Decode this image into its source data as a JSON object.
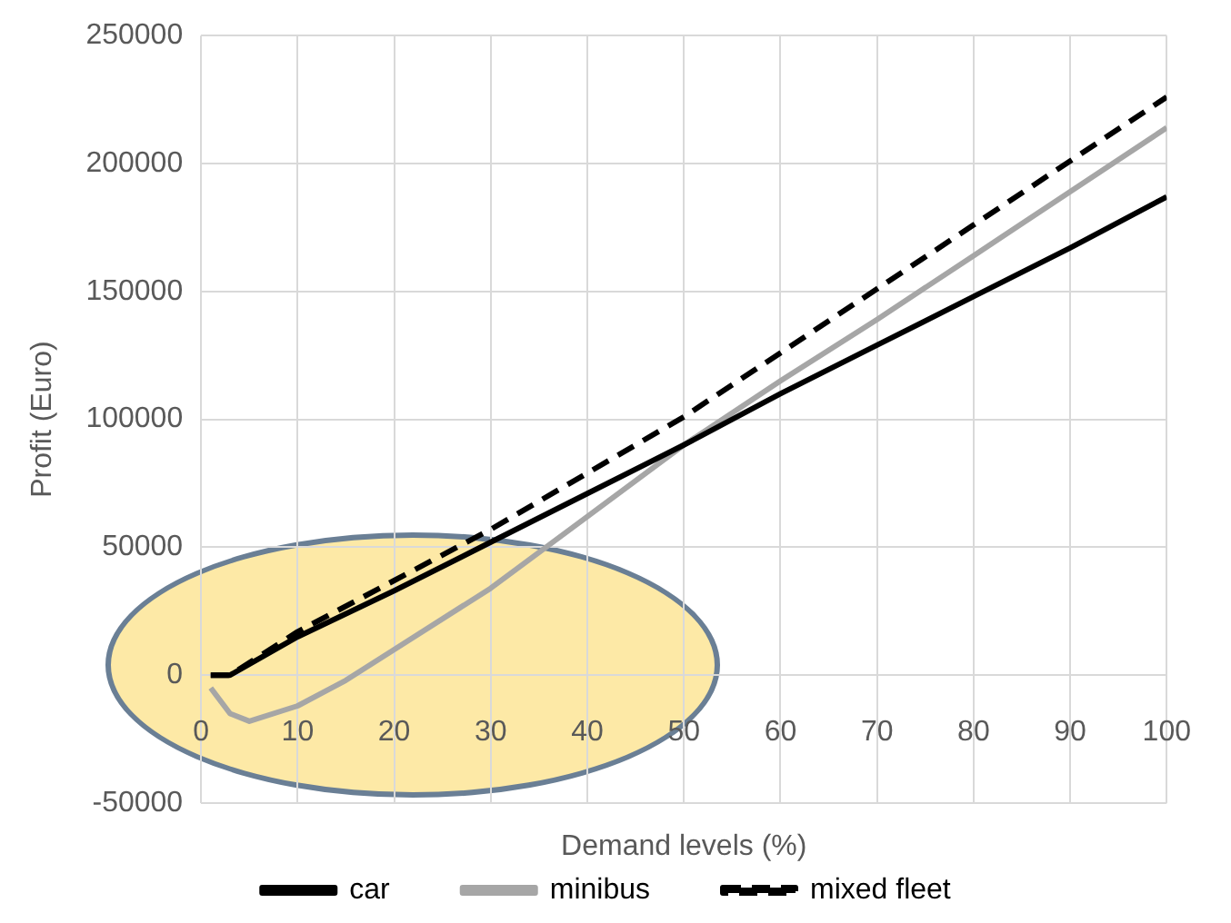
{
  "chart_data": {
    "type": "line",
    "xlabel": "Demand levels (%)",
    "ylabel": "Profit (Euro)",
    "xlim": [
      0,
      100
    ],
    "xticks": [
      0,
      10,
      20,
      30,
      40,
      50,
      60,
      70,
      80,
      90,
      100
    ],
    "ylim": [
      -50000,
      250000
    ],
    "yticks": [
      -50000,
      0,
      50000,
      100000,
      150000,
      200000,
      250000
    ],
    "grid": true,
    "legend": "bottom",
    "marker": "none",
    "series": [
      {
        "name": "car",
        "color": "#000000",
        "line_style": "solid",
        "x": [
          1,
          3,
          10,
          20,
          30,
          40,
          50,
          60,
          70,
          80,
          90,
          100
        ],
        "values": [
          0,
          0,
          15000,
          33000,
          52000,
          71000,
          90000,
          110000,
          129000,
          148000,
          167000,
          187000
        ]
      },
      {
        "name": "minibus",
        "color": "#a6a6a6",
        "line_style": "solid",
        "x": [
          1,
          3,
          5,
          10,
          15,
          20,
          30,
          40,
          50,
          60,
          70,
          80,
          90,
          100
        ],
        "values": [
          -5000,
          -15000,
          -18000,
          -12000,
          -2000,
          10000,
          34000,
          62000,
          90000,
          115000,
          139000,
          164000,
          189000,
          214000
        ]
      },
      {
        "name": "mixed fleet",
        "color": "#000000",
        "line_style": "dashed",
        "x": [
          1,
          3,
          10,
          20,
          30,
          40,
          50,
          60,
          70,
          80,
          90,
          100
        ],
        "values": [
          0,
          0,
          17000,
          37000,
          57000,
          79000,
          101000,
          126000,
          151000,
          176000,
          201000,
          226000
        ]
      }
    ]
  }
}
